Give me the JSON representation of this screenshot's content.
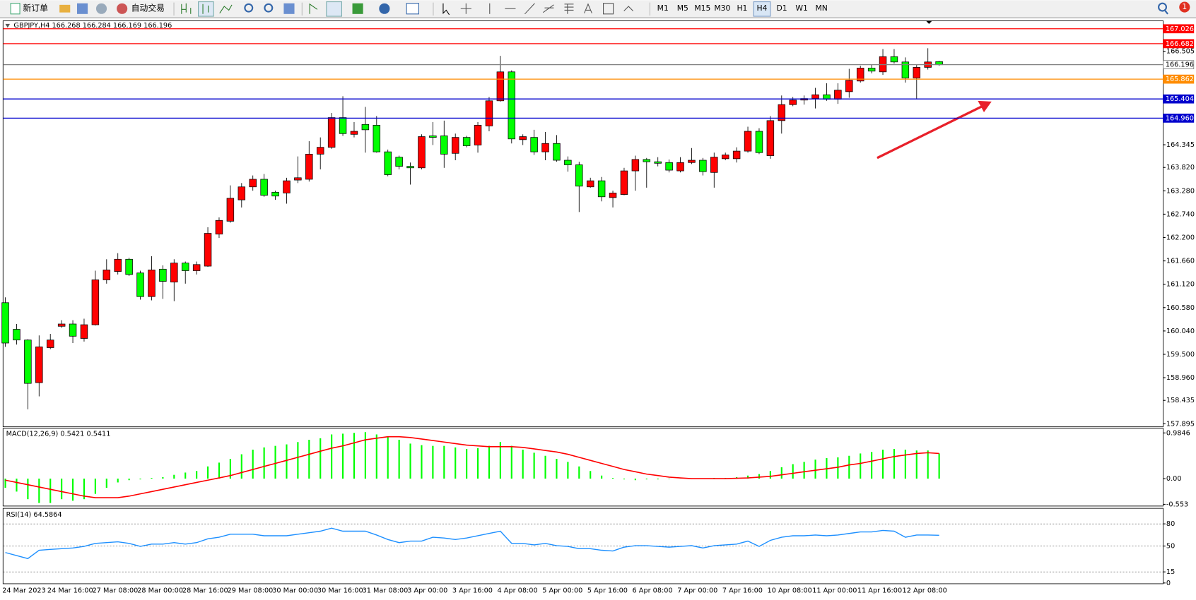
{
  "toolbar": {
    "buttons": [
      "新订单",
      "自动交易"
    ],
    "timeframes": [
      "M1",
      "M5",
      "M15",
      "M30",
      "H1",
      "H4",
      "D1",
      "W1",
      "MN"
    ],
    "selected_timeframe": 5,
    "alert": "1"
  },
  "chart_data": [
    {
      "type": "candlestick",
      "title": "GBPJPY,H4  166.268 166.284 166.169 166.196",
      "categories": [
        "24 Mar 2023",
        null,
        null,
        null,
        "24 Mar 16:00",
        null,
        null,
        null,
        "27 Mar 08:00",
        null,
        null,
        null,
        "28 Mar 00:00",
        null,
        null,
        null,
        "28 Mar 16:00",
        null,
        null,
        null,
        "29 Mar 08:00",
        null,
        null,
        null,
        "30 Mar 00:00",
        null,
        null,
        null,
        "30 Mar 16:00",
        null,
        null,
        null,
        "31 Mar 08:00",
        null,
        null,
        null,
        "3 Apr 00:00",
        null,
        null,
        null,
        "3 Apr 16:00",
        null,
        null,
        null,
        "4 Apr 08:00",
        null,
        null,
        null,
        "5 Apr 00:00",
        null,
        null,
        null,
        "5 Apr 16:00",
        null,
        null,
        null,
        "6 Apr 08:00",
        null,
        null,
        null,
        "7 Apr 00:00",
        null,
        null,
        null,
        "7 Apr 16:00",
        null,
        null,
        null,
        "10 Apr 08:00",
        null,
        null,
        null,
        "11 Apr 00:00",
        null,
        null,
        null,
        "11 Apr 16:00",
        null,
        null,
        null,
        "12 Apr 08:00",
        null,
        null,
        null
      ],
      "open": [
        160.694,
        160.078,
        159.831,
        158.845,
        159.655,
        160.148,
        160.201,
        159.867,
        160.184,
        161.222,
        161.416,
        161.698,
        161.381,
        160.835,
        161.469,
        161.17,
        161.61,
        161.434,
        161.539,
        162.279,
        162.578,
        163.071,
        163.371,
        163.547,
        163.248,
        163.23,
        163.529,
        163.547,
        164.128,
        164.286,
        164.973,
        164.586,
        164.815,
        164.797,
        164.181,
        164.058,
        163.846,
        163.811,
        164.551,
        164.551,
        164.146,
        164.515,
        164.339,
        164.78,
        165.361,
        166.03,
        164.463,
        164.515,
        164.181,
        164.375,
        163.987,
        163.881,
        163.371,
        163.512,
        163.124,
        163.195,
        163.741,
        164.005,
        163.952,
        163.934,
        163.741,
        163.934,
        163.987,
        163.705,
        164.022,
        164.022,
        164.198,
        164.656,
        164.093,
        164.903,
        165.273,
        165.378,
        165.413,
        165.501,
        165.396,
        165.572,
        165.818,
        166.118,
        166.03,
        166.382,
        166.259,
        165.889,
        166.135,
        166.268
      ],
      "high": [
        160.817,
        160.201,
        159.849,
        159.937,
        159.972,
        160.289,
        160.289,
        160.324,
        161.434,
        161.698,
        161.839,
        161.733,
        161.434,
        161.768,
        161.557,
        161.698,
        161.645,
        161.645,
        162.438,
        162.666,
        163.406,
        163.459,
        163.635,
        163.67,
        163.283,
        163.582,
        164.075,
        164.427,
        164.515,
        165.079,
        165.466,
        164.868,
        165.22,
        165.008,
        164.234,
        164.093,
        163.934,
        164.586,
        164.868,
        164.903,
        164.603,
        164.551,
        164.868,
        165.449,
        166.4,
        166.065,
        164.586,
        164.691,
        164.639,
        164.568,
        164.075,
        163.952,
        163.582,
        163.6,
        163.283,
        163.811,
        164.093,
        164.04,
        164.058,
        164.005,
        164.058,
        164.269,
        164.04,
        164.163,
        164.163,
        164.286,
        164.762,
        164.727,
        165.008,
        165.484,
        165.449,
        165.484,
        165.66,
        165.766,
        165.766,
        166.1,
        166.171,
        166.206,
        166.558,
        166.558,
        166.364,
        166.188,
        166.576,
        166.284
      ],
      "low": [
        159.673,
        159.726,
        158.229,
        158.528,
        159.62,
        160.113,
        159.761,
        159.796,
        160.166,
        161.134,
        161.346,
        161.311,
        160.765,
        160.747,
        160.782,
        160.729,
        161.134,
        161.346,
        161.522,
        162.191,
        162.543,
        162.895,
        163.283,
        163.142,
        163.071,
        162.983,
        163.459,
        163.494,
        163.776,
        164.251,
        164.551,
        164.515,
        164.163,
        164.163,
        163.617,
        163.776,
        163.424,
        163.776,
        164.339,
        163.811,
        163.987,
        164.286,
        164.163,
        164.656,
        165.343,
        164.375,
        164.339,
        164.11,
        163.987,
        163.952,
        163.723,
        162.79,
        163.353,
        163.036,
        162.895,
        163.177,
        163.283,
        163.353,
        163.846,
        163.705,
        163.705,
        163.899,
        163.635,
        163.353,
        163.987,
        163.934,
        164.163,
        164.128,
        164.022,
        164.603,
        165.237,
        165.273,
        165.185,
        165.361,
        165.29,
        165.431,
        165.783,
        165.995,
        165.959,
        166.223,
        165.783,
        165.396,
        166.083,
        166.169
      ],
      "close": [
        159.761,
        159.831,
        158.828,
        159.673,
        159.831,
        160.201,
        159.919,
        160.184,
        161.222,
        161.451,
        161.698,
        161.346,
        160.835,
        161.451,
        161.187,
        161.61,
        161.434,
        161.575,
        162.297,
        162.596,
        163.107,
        163.371,
        163.547,
        163.177,
        163.159,
        163.512,
        163.582,
        164.128,
        164.286,
        164.973,
        164.603,
        164.656,
        164.691,
        164.181,
        163.653,
        163.846,
        163.811,
        164.533,
        164.515,
        164.128,
        164.515,
        164.322,
        164.797,
        165.361,
        166.03,
        164.48,
        164.533,
        164.181,
        164.375,
        163.987,
        163.881,
        163.388,
        163.512,
        163.142,
        163.23,
        163.741,
        164.005,
        163.952,
        163.917,
        163.758,
        163.934,
        163.987,
        163.723,
        164.058,
        164.11,
        164.198,
        164.656,
        164.163,
        164.903,
        165.273,
        165.378,
        165.413,
        165.501,
        165.396,
        165.607,
        165.836,
        166.118,
        166.047,
        166.382,
        166.259,
        165.889,
        166.135,
        166.259,
        166.196
      ],
      "up_color": "#ff0000",
      "down_color": "#00ff00",
      "ylim": [
        157.824,
        167.157
      ],
      "yticks": [
        166.505,
        164.345,
        {
          "value": 163.82,
          "label": "163.820"
        },
        {
          "value": 163.28,
          "label": "163.280"
        },
        {
          "value": 162.74,
          "label": "162.740"
        },
        {
          "value": 162.2,
          "label": "162.200"
        },
        {
          "value": 161.66,
          "label": "161.660"
        },
        {
          "value": 161.12,
          "label": "161.120"
        },
        {
          "value": 160.58,
          "label": "160.580"
        },
        {
          "value": 160.04,
          "label": "160.040"
        },
        {
          "value": 159.5,
          "label": "159.500"
        },
        {
          "value": 158.96,
          "label": "158.960"
        },
        158.435,
        157.895
      ],
      "grid": false,
      "hlines": [
        {
          "value": 167.026,
          "color": "#ff0000",
          "box": "#ff0000",
          "text_color": "#ffffff"
        },
        {
          "value": 166.682,
          "color": "#ff0000",
          "box": "#ff0000",
          "text_color": "#ffffff"
        },
        {
          "value": 166.196,
          "color": "#808080",
          "box": "#ffffff",
          "text_color": "#000000"
        },
        {
          "value": 165.862,
          "color": "#ff8c00",
          "box": "#ff8c00",
          "text_color": "#ffffff"
        },
        {
          "value": 165.404,
          "color": "#0000cd",
          "box": "#0000cd",
          "text_color": "#ffffff"
        },
        {
          "value": 164.96,
          "label": "164.960",
          "color": "#0000cd",
          "box": "#0000cd",
          "text_color": "#ffffff"
        }
      ]
    },
    {
      "type": "macd",
      "title": "MACD(12,26,9) 0.5421 0.5411",
      "histogram": {
        "color": "#00ff00",
        "values": [
          -0.197,
          -0.279,
          -0.443,
          -0.525,
          -0.525,
          -0.443,
          -0.476,
          -0.443,
          -0.328,
          -0.197,
          -0.082,
          -0.033,
          -0.016,
          0.016,
          0.033,
          0.082,
          0.131,
          0.164,
          0.263,
          0.345,
          0.427,
          0.525,
          0.624,
          0.673,
          0.706,
          0.738,
          0.788,
          0.837,
          0.87,
          0.952,
          0.968,
          0.985,
          1.001,
          0.952,
          0.903,
          0.837,
          0.755,
          0.722,
          0.706,
          0.706,
          0.673,
          0.64,
          0.656,
          0.706,
          0.788,
          0.706,
          0.624,
          0.558,
          0.492,
          0.427,
          0.361,
          0.263,
          0.164,
          0.066,
          0.016,
          -0.016,
          -0.033,
          -0.016,
          -0.016,
          -0.008,
          0.003,
          0.005,
          0.003,
          0.016,
          0.016,
          0.033,
          0.066,
          0.098,
          0.164,
          0.246,
          0.312,
          0.361,
          0.41,
          0.443,
          0.459,
          0.492,
          0.542,
          0.574,
          0.624,
          0.64,
          0.624,
          0.607,
          0.607,
          0.5421
        ]
      },
      "signal": {
        "color": "#ff0000",
        "values": [
          -0.033,
          -0.082,
          -0.131,
          -0.181,
          -0.23,
          -0.279,
          -0.328,
          -0.377,
          -0.41,
          -0.41,
          -0.41,
          -0.377,
          -0.328,
          -0.279,
          -0.23,
          -0.181,
          -0.131,
          -0.082,
          -0.033,
          0.016,
          0.066,
          0.131,
          0.197,
          0.263,
          0.328,
          0.394,
          0.459,
          0.525,
          0.591,
          0.656,
          0.706,
          0.771,
          0.837,
          0.87,
          0.903,
          0.903,
          0.886,
          0.853,
          0.821,
          0.788,
          0.755,
          0.722,
          0.706,
          0.689,
          0.689,
          0.689,
          0.673,
          0.64,
          0.607,
          0.574,
          0.525,
          0.459,
          0.394,
          0.328,
          0.263,
          0.197,
          0.148,
          0.098,
          0.066,
          0.033,
          0.016,
          0,
          0,
          0,
          0,
          0.008,
          0.016,
          0.033,
          0.049,
          0.082,
          0.115,
          0.148,
          0.181,
          0.213,
          0.246,
          0.295,
          0.328,
          0.377,
          0.427,
          0.476,
          0.509,
          0.542,
          0.558,
          0.5411
        ]
      },
      "ylim": [
        -0.574,
        1.067
      ],
      "yticks": [
        0.9846,
        {
          "value": 0,
          "label": "0.00"
        },
        -0.553
      ]
    },
    {
      "type": "rsi",
      "title": "RSI(14) 64.5864",
      "color": "#1e90ff",
      "values": [
        41.2,
        37.1,
        33.0,
        44.3,
        45.4,
        46.4,
        47.4,
        49.5,
        53.6,
        54.6,
        55.7,
        53.6,
        49.5,
        52.6,
        52.6,
        54.6,
        52.6,
        54.6,
        59.8,
        61.9,
        66.0,
        66.0,
        66.0,
        63.9,
        63.9,
        63.9,
        66.0,
        68.0,
        70.1,
        74.2,
        70.1,
        70.1,
        70.1,
        64.9,
        58.8,
        54.6,
        56.7,
        56.7,
        61.9,
        60.8,
        58.8,
        60.8,
        63.9,
        67.0,
        70.1,
        53.6,
        53.6,
        51.5,
        53.6,
        50.5,
        49.5,
        46.4,
        46.4,
        44.3,
        43.3,
        48.5,
        50.5,
        50.5,
        49.5,
        48.5,
        49.5,
        50.5,
        47.4,
        50.5,
        51.5,
        52.6,
        56.7,
        49.5,
        57.7,
        61.9,
        63.9,
        63.9,
        64.9,
        63.9,
        64.9,
        67.0,
        69.1,
        69.1,
        71.1,
        70.1,
        61.9,
        64.9,
        64.9,
        64.5864
      ],
      "ylim": [
        0,
        100
      ],
      "yticks": [
        80,
        50,
        15,
        0
      ]
    }
  ]
}
